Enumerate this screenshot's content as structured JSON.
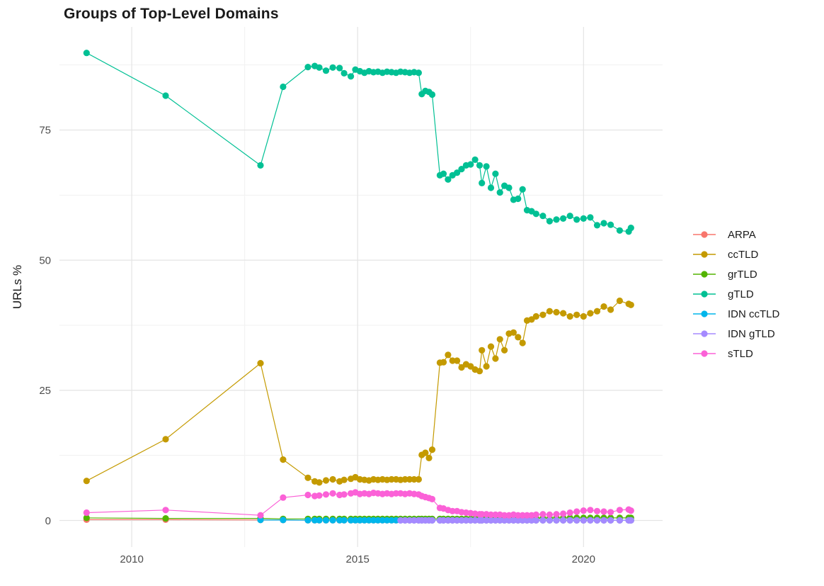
{
  "chart": {
    "title": "Groups of Top-Level Domains",
    "ylabel": "URLs %"
  },
  "chart_data": {
    "type": "line",
    "title": "Groups of Top-Level Domains",
    "xlabel": "",
    "ylabel": "URLs %",
    "grid": true,
    "legend_position": "right",
    "xlim": [
      2008.4,
      2021.75
    ],
    "ylim": [
      -5.1,
      94.8
    ],
    "x_ticks": {
      "values": [
        2010,
        2015,
        2020
      ],
      "labels": [
        "2010",
        "2015",
        "2020"
      ],
      "minor": [
        2012.5,
        2017.5
      ]
    },
    "y_ticks": {
      "values": [
        0,
        25,
        50,
        75
      ],
      "labels": [
        "0",
        "25",
        "50",
        "75"
      ],
      "minor": [
        12.5,
        37.5,
        62.5,
        87.5
      ]
    },
    "x": [
      2009.0,
      2010.75,
      2012.85,
      2013.35,
      2013.9,
      2014.05,
      2014.15,
      2014.3,
      2014.45,
      2014.6,
      2014.7,
      2014.85,
      2014.95,
      2015.05,
      2015.15,
      2015.25,
      2015.35,
      2015.45,
      2015.55,
      2015.65,
      2015.75,
      2015.85,
      2015.95,
      2016.05,
      2016.15,
      2016.25,
      2016.35,
      2016.42,
      2016.5,
      2016.58,
      2016.65,
      2016.82,
      2016.9,
      2017.0,
      2017.1,
      2017.2,
      2017.3,
      2017.4,
      2017.5,
      2017.6,
      2017.7,
      2017.75,
      2017.85,
      2017.95,
      2018.05,
      2018.15,
      2018.25,
      2018.35,
      2018.45,
      2018.55,
      2018.65,
      2018.75,
      2018.85,
      2018.95,
      2019.1,
      2019.25,
      2019.4,
      2019.55,
      2019.7,
      2019.85,
      2020.0,
      2020.15,
      2020.3,
      2020.45,
      2020.6,
      2020.8,
      2021.0,
      2021.05
    ],
    "series": [
      {
        "name": "ARPA",
        "color": "#F8766D",
        "values": [
          0.15,
          0.15,
          0.1,
          0.08,
          0.05,
          0.05,
          0.05,
          0.05,
          0.05,
          0.05,
          0.05,
          0.05,
          0.05,
          0.05,
          0.05,
          0.05,
          0.05,
          0.05,
          0.05,
          0.05,
          0.05,
          0.05,
          0.05,
          0.05,
          0.05,
          0.05,
          0.05,
          0.04,
          0.04,
          0.04,
          0.04,
          0.03,
          0.03,
          0.03,
          0.03,
          0.03,
          0.03,
          0.03,
          0.03,
          0.03,
          0.03,
          0.03,
          0.03,
          0.03,
          0.03,
          0.03,
          0.03,
          0.03,
          0.03,
          0.03,
          0.03,
          0.03,
          0.03,
          0.03,
          0.03,
          0.03,
          0.03,
          0.03,
          0.03,
          0.03,
          0.03,
          0.03,
          0.03,
          0.03,
          0.03,
          0.03,
          0.03,
          0.03
        ]
      },
      {
        "name": "ccTLD",
        "color": "#C49A00",
        "values": [
          7.6,
          15.6,
          30.2,
          11.7,
          8.2,
          7.5,
          7.3,
          7.7,
          7.9,
          7.5,
          7.8,
          8.0,
          8.3,
          7.9,
          7.8,
          7.7,
          7.9,
          7.8,
          7.9,
          7.8,
          7.9,
          7.9,
          7.8,
          7.9,
          7.9,
          7.9,
          7.9,
          12.6,
          13.0,
          12.0,
          13.6,
          30.3,
          30.4,
          31.8,
          30.7,
          30.7,
          29.4,
          30.0,
          29.6,
          29.0,
          28.7,
          32.7,
          29.6,
          33.4,
          31.1,
          34.8,
          32.7,
          35.9,
          36.1,
          35.2,
          34.1,
          38.4,
          38.6,
          39.2,
          39.5,
          40.2,
          40.0,
          39.8,
          39.2,
          39.5,
          39.2,
          39.8,
          40.2,
          41.1,
          40.5,
          42.2,
          41.6,
          41.4
        ]
      },
      {
        "name": "grTLD",
        "color": "#53B400",
        "values": [
          0.5,
          0.4,
          0.4,
          0.3,
          0.3,
          0.3,
          0.3,
          0.3,
          0.3,
          0.3,
          0.3,
          0.3,
          0.3,
          0.3,
          0.3,
          0.3,
          0.3,
          0.3,
          0.3,
          0.3,
          0.3,
          0.3,
          0.3,
          0.3,
          0.3,
          0.3,
          0.3,
          0.3,
          0.3,
          0.3,
          0.3,
          0.3,
          0.3,
          0.3,
          0.3,
          0.3,
          0.3,
          0.3,
          0.3,
          0.3,
          0.3,
          0.3,
          0.3,
          0.35,
          0.35,
          0.35,
          0.4,
          0.4,
          0.4,
          0.4,
          0.4,
          0.4,
          0.45,
          0.45,
          0.45,
          0.45,
          0.5,
          0.5,
          0.5,
          0.5,
          0.5,
          0.5,
          0.5,
          0.5,
          0.5,
          0.5,
          0.5,
          0.5
        ]
      },
      {
        "name": "gTLD",
        "color": "#00C094",
        "values": [
          89.8,
          81.6,
          68.2,
          83.3,
          87.1,
          87.3,
          87.0,
          86.4,
          87.0,
          86.9,
          85.9,
          85.3,
          86.6,
          86.3,
          86.0,
          86.3,
          86.1,
          86.2,
          86.0,
          86.2,
          86.1,
          86.0,
          86.2,
          86.1,
          86.0,
          86.1,
          86.0,
          81.9,
          82.5,
          82.3,
          81.8,
          66.3,
          66.6,
          65.5,
          66.3,
          66.8,
          67.5,
          68.2,
          68.4,
          69.3,
          68.2,
          64.8,
          68.0,
          63.9,
          66.6,
          63.0,
          64.3,
          63.9,
          61.6,
          61.8,
          63.6,
          59.6,
          59.4,
          58.9,
          58.5,
          57.5,
          57.8,
          58.0,
          58.5,
          57.8,
          58.0,
          58.2,
          56.7,
          57.1,
          56.8,
          55.7,
          55.5,
          56.2
        ]
      },
      {
        "name": "IDN ccTLD",
        "color": "#00B6EB",
        "values": [
          null,
          null,
          0.1,
          0.08,
          0.05,
          0.05,
          0.05,
          0.05,
          0.05,
          0.05,
          0.05,
          0.05,
          0.05,
          0.05,
          0.05,
          0.05,
          0.05,
          0.05,
          0.05,
          0.05,
          0.05,
          0.05,
          0.05,
          0.05,
          0.05,
          0.05,
          0.05,
          0.05,
          0.05,
          0.05,
          0.05,
          0.05,
          0.05,
          0.05,
          0.05,
          0.05,
          0.05,
          0.05,
          0.05,
          0.05,
          0.05,
          0.05,
          0.05,
          0.05,
          0.05,
          0.05,
          0.05,
          0.05,
          0.05,
          0.05,
          0.05,
          0.05,
          0.05,
          0.05,
          0.05,
          0.05,
          0.05,
          0.05,
          0.05,
          0.05,
          0.05,
          0.05,
          0.05,
          0.05,
          0.05,
          0.05,
          0.05,
          0.05
        ]
      },
      {
        "name": "IDN gTLD",
        "color": "#A58AFF",
        "values": [
          null,
          null,
          null,
          null,
          null,
          null,
          null,
          null,
          null,
          null,
          null,
          null,
          null,
          null,
          null,
          null,
          null,
          null,
          null,
          null,
          null,
          null,
          0.02,
          0.02,
          0.02,
          0.02,
          0.02,
          0.02,
          0.02,
          0.02,
          0.02,
          0.02,
          0.02,
          0.02,
          0.02,
          0.02,
          0.02,
          0.02,
          0.02,
          0.02,
          0.02,
          0.02,
          0.02,
          0.02,
          0.02,
          0.02,
          0.02,
          0.02,
          0.02,
          0.02,
          0.02,
          0.02,
          0.02,
          0.02,
          0.02,
          0.02,
          0.02,
          0.02,
          0.02,
          0.02,
          0.02,
          0.02,
          0.02,
          0.02,
          0.02,
          0.02,
          0.02,
          0.02
        ]
      },
      {
        "name": "sTLD",
        "color": "#FB61D7",
        "values": [
          1.5,
          2.0,
          1.0,
          4.4,
          4.9,
          4.7,
          4.8,
          5.0,
          5.2,
          4.9,
          5.0,
          5.2,
          5.4,
          5.1,
          5.2,
          5.1,
          5.3,
          5.2,
          5.1,
          5.2,
          5.1,
          5.2,
          5.2,
          5.1,
          5.2,
          5.1,
          5.0,
          4.7,
          4.5,
          4.3,
          4.1,
          2.4,
          2.3,
          2.0,
          1.8,
          1.8,
          1.6,
          1.5,
          1.4,
          1.3,
          1.2,
          1.2,
          1.2,
          1.1,
          1.1,
          1.1,
          1.0,
          1.0,
          1.1,
          1.0,
          1.0,
          1.0,
          1.0,
          1.1,
          1.2,
          1.1,
          1.2,
          1.3,
          1.5,
          1.7,
          1.9,
          2.0,
          1.8,
          1.7,
          1.6,
          2.0,
          2.1,
          1.9
        ]
      }
    ]
  },
  "style": {
    "major_grid_color": "#e4e4e4",
    "minor_grid_color": "#f1f1f1",
    "axis_text_color": "#4d4d4d",
    "background": "#ffffff"
  }
}
